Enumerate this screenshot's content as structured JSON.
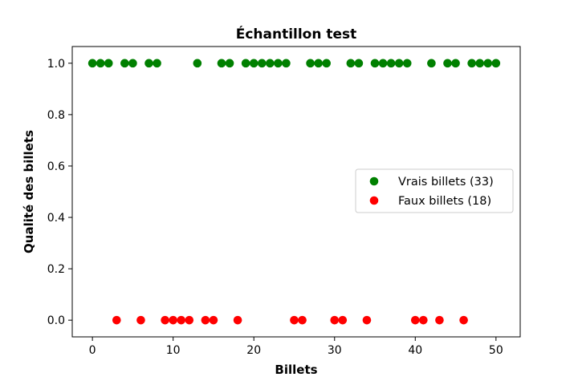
{
  "chart_data": {
    "type": "scatter",
    "title": "Échantillon test",
    "xlabel": "Billets",
    "ylabel": "Qualité des billets",
    "xlim": [
      -2.5,
      53
    ],
    "ylim": [
      -0.065,
      1.065
    ],
    "xticks": [
      0,
      10,
      20,
      30,
      40,
      50
    ],
    "yticks": [
      0.0,
      0.2,
      0.4,
      0.6,
      0.8,
      1.0
    ],
    "xtick_labels": [
      "0",
      "10",
      "20",
      "30",
      "40",
      "50"
    ],
    "ytick_labels": [
      "0.0",
      "0.2",
      "0.4",
      "0.6",
      "0.8",
      "1.0"
    ],
    "grid": false,
    "legend_position": "center-right",
    "series": [
      {
        "name": "Vrais billets (33)",
        "color": "#008000",
        "x": [
          0,
          1,
          2,
          4,
          5,
          7,
          8,
          13,
          16,
          17,
          19,
          20,
          21,
          22,
          23,
          24,
          27,
          28,
          29,
          32,
          33,
          35,
          36,
          37,
          38,
          39,
          42,
          44,
          45,
          47,
          48,
          49,
          50
        ],
        "y": [
          1,
          1,
          1,
          1,
          1,
          1,
          1,
          1,
          1,
          1,
          1,
          1,
          1,
          1,
          1,
          1,
          1,
          1,
          1,
          1,
          1,
          1,
          1,
          1,
          1,
          1,
          1,
          1,
          1,
          1,
          1,
          1,
          1
        ]
      },
      {
        "name": "Faux billets (18)",
        "color": "#ff0000",
        "x": [
          3,
          6,
          9,
          10,
          11,
          12,
          14,
          15,
          18,
          25,
          26,
          30,
          31,
          34,
          40,
          41,
          43,
          46
        ],
        "y": [
          0,
          0,
          0,
          0,
          0,
          0,
          0,
          0,
          0,
          0,
          0,
          0,
          0,
          0,
          0,
          0,
          0,
          0
        ]
      }
    ]
  }
}
